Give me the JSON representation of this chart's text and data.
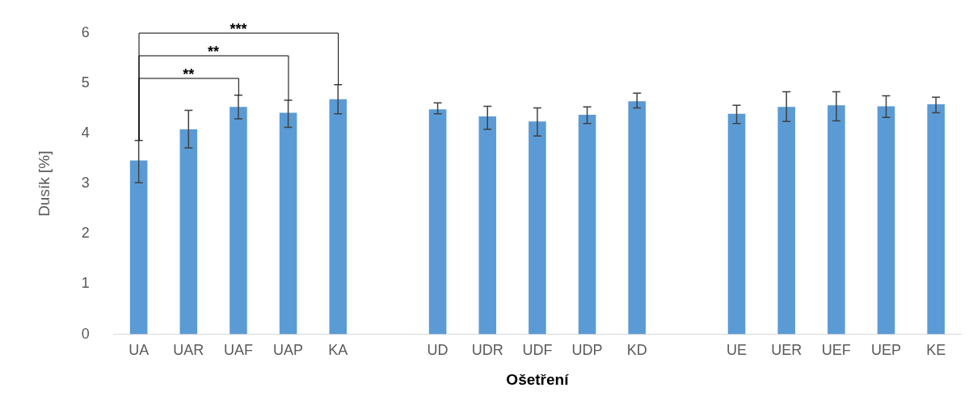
{
  "chart_data": {
    "type": "bar",
    "xlabel": "Ošetření",
    "ylabel": "Dusík [%]",
    "categories": [
      "UA",
      "UAR",
      "UAF",
      "UAP",
      "KA",
      null,
      "UD",
      "UDR",
      "UDF",
      "UDP",
      "KD",
      null,
      "UE",
      "UER",
      "UEF",
      "UEP",
      "KE"
    ],
    "values": [
      3.46,
      4.08,
      4.53,
      4.41,
      4.68,
      null,
      4.48,
      4.34,
      4.24,
      4.37,
      4.64,
      null,
      4.39,
      4.53,
      4.56,
      4.54,
      4.58
    ],
    "errors": [
      [
        3.02,
        3.86
      ],
      [
        3.71,
        4.46
      ],
      [
        4.29,
        4.76
      ],
      [
        4.12,
        4.66
      ],
      [
        4.39,
        4.97
      ],
      null,
      [
        4.39,
        4.61
      ],
      [
        4.08,
        4.54
      ],
      [
        3.95,
        4.51
      ],
      [
        4.2,
        4.53
      ],
      [
        4.51,
        4.8
      ],
      null,
      [
        4.2,
        4.56
      ],
      [
        4.24,
        4.83
      ],
      [
        4.25,
        4.83
      ],
      [
        4.32,
        4.75
      ],
      [
        4.41,
        4.72
      ]
    ],
    "color": "#5b9bd5",
    "ylim": [
      0,
      6
    ],
    "yticks": [
      0,
      1,
      2,
      3,
      4,
      5,
      6
    ],
    "grid": false,
    "legend": false,
    "annotations": [
      "**",
      "**",
      "***"
    ]
  }
}
